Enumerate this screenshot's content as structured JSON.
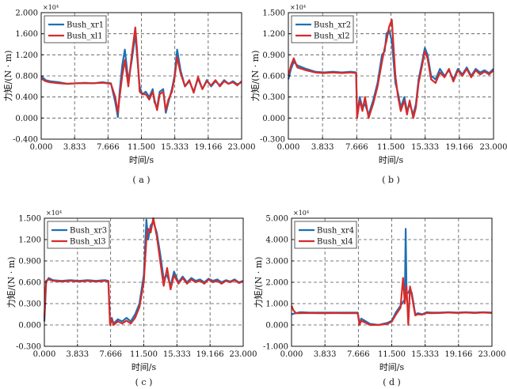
{
  "chart_data": [
    {
      "type": "line",
      "caption": "( a )",
      "xlabel": "时间/s",
      "ylabel": "力矩/(N · m)",
      "y_scale_label": "×10⁴",
      "xlim": [
        0,
        23
      ],
      "ylim": [
        -0.4,
        2.0
      ],
      "x_ticks": [
        "0.000",
        "3.833",
        "7.666",
        "11.500",
        "15.333",
        "19.166",
        "23.000"
      ],
      "y_ticks": [
        "-0.400",
        "0.000",
        "0.400",
        "0.800",
        "1.200",
        "1.600",
        "2.000"
      ],
      "legend_position": "top-left",
      "series": [
        {
          "name": "Bush_xr1",
          "color": "#1f6fb4",
          "x": [
            0,
            0.5,
            1,
            2,
            3,
            4,
            5,
            6,
            7,
            7.5,
            8,
            8.5,
            8.8,
            9,
            9.3,
            9.6,
            10,
            10.4,
            10.8,
            11,
            11.3,
            11.6,
            12,
            12.4,
            12.8,
            13,
            13.3,
            13.6,
            14,
            14.3,
            14.6,
            15,
            15.3,
            15.6,
            16,
            16.5,
            17,
            17.5,
            18,
            18.5,
            19,
            19.5,
            20,
            20.5,
            21,
            21.5,
            22,
            22.5,
            23
          ],
          "y": [
            0.8,
            0.72,
            0.7,
            0.68,
            0.65,
            0.66,
            0.67,
            0.66,
            0.68,
            0.67,
            0.66,
            0.3,
            0.02,
            0.5,
            1.0,
            1.3,
            0.7,
            1.1,
            1.6,
            1.2,
            0.6,
            0.45,
            0.5,
            0.4,
            0.55,
            0.3,
            0.2,
            0.5,
            0.55,
            0.1,
            0.3,
            0.55,
            0.8,
            1.3,
            0.9,
            0.6,
            0.7,
            0.5,
            0.75,
            0.55,
            0.72,
            0.6,
            0.7,
            0.62,
            0.72,
            0.65,
            0.7,
            0.64,
            0.68
          ]
        },
        {
          "name": "Bush_xl1",
          "color": "#d62b2b",
          "x": [
            0,
            0.5,
            1,
            2,
            3,
            4,
            5,
            6,
            7,
            7.5,
            8,
            8.5,
            8.8,
            9,
            9.3,
            9.6,
            10,
            10.4,
            10.8,
            11,
            11.3,
            11.6,
            12,
            12.4,
            12.8,
            13,
            13.3,
            13.6,
            14,
            14.3,
            14.6,
            15,
            15.3,
            15.6,
            16,
            16.5,
            17,
            17.5,
            18,
            18.5,
            19,
            19.5,
            20,
            20.5,
            21,
            21.5,
            22,
            22.5,
            23
          ],
          "y": [
            0.75,
            0.7,
            0.68,
            0.66,
            0.65,
            0.66,
            0.66,
            0.66,
            0.67,
            0.66,
            0.65,
            0.4,
            0.1,
            0.4,
            0.8,
            1.1,
            0.6,
            1.2,
            1.72,
            1.3,
            0.5,
            0.45,
            0.45,
            0.35,
            0.5,
            0.35,
            0.15,
            0.45,
            0.5,
            0.15,
            0.35,
            0.5,
            0.75,
            1.15,
            0.85,
            0.6,
            0.72,
            0.48,
            0.78,
            0.55,
            0.7,
            0.62,
            0.72,
            0.6,
            0.7,
            0.65,
            0.68,
            0.62,
            0.7
          ]
        }
      ]
    },
    {
      "type": "line",
      "caption": "( b )",
      "xlabel": "时间/s",
      "ylabel": "力矩/(N · m)",
      "y_scale_label": "×10⁴",
      "xlim": [
        0,
        23
      ],
      "ylim": [
        -0.3,
        1.5
      ],
      "x_ticks": [
        "0.000",
        "3.833",
        "7.666",
        "11.500",
        "15.333",
        "19.166",
        "23.000"
      ],
      "y_ticks": [
        "-0.300",
        "0.000",
        "0.300",
        "0.600",
        "0.900",
        "1.200",
        "1.500"
      ],
      "legend_position": "top-left",
      "series": [
        {
          "name": "Bush_xr2",
          "color": "#1f6fb4",
          "x": [
            0,
            0.3,
            0.6,
            1,
            2,
            3,
            4,
            5,
            6,
            7,
            7.6,
            7.7,
            8,
            8.3,
            8.6,
            9,
            9.5,
            10,
            10.5,
            10.8,
            11,
            11.3,
            11.6,
            12,
            12.3,
            12.6,
            13,
            13.3,
            13.6,
            14,
            14.3,
            14.6,
            15,
            15.3,
            15.6,
            16,
            16.5,
            17,
            17.5,
            18,
            18.5,
            19,
            19.5,
            20,
            20.5,
            21,
            21.5,
            22,
            22.5,
            23
          ],
          "y": [
            0.55,
            0.7,
            0.8,
            0.75,
            0.7,
            0.66,
            0.65,
            0.66,
            0.65,
            0.66,
            0.65,
            0.05,
            0.3,
            0.15,
            0.2,
            0.05,
            0.25,
            0.5,
            0.9,
            0.95,
            1.2,
            1.25,
            1.1,
            0.5,
            0.35,
            0.15,
            0.3,
            0.1,
            0.2,
            0.05,
            0.2,
            0.55,
            0.8,
            1.0,
            0.9,
            0.6,
            0.55,
            0.7,
            0.6,
            0.68,
            0.55,
            0.7,
            0.62,
            0.72,
            0.6,
            0.7,
            0.65,
            0.68,
            0.64,
            0.7
          ]
        },
        {
          "name": "Bush_xl2",
          "color": "#d62b2b",
          "x": [
            0,
            0.3,
            0.6,
            1,
            2,
            3,
            4,
            5,
            6,
            7,
            7.6,
            7.7,
            8,
            8.3,
            8.6,
            9,
            9.5,
            10,
            10.5,
            10.8,
            11,
            11.3,
            11.6,
            12,
            12.3,
            12.6,
            13,
            13.3,
            13.6,
            14,
            14.3,
            14.6,
            15,
            15.3,
            15.6,
            16,
            16.5,
            17,
            17.5,
            18,
            18.5,
            19,
            19.5,
            20,
            20.5,
            21,
            21.5,
            22,
            22.5,
            23
          ],
          "y": [
            0.6,
            0.75,
            0.85,
            0.72,
            0.68,
            0.65,
            0.64,
            0.65,
            0.64,
            0.65,
            0.64,
            0.0,
            0.25,
            0.1,
            0.3,
            0.0,
            0.2,
            0.45,
            0.8,
            1.0,
            1.1,
            1.3,
            1.4,
            0.6,
            0.3,
            0.1,
            0.25,
            0.05,
            0.25,
            0.0,
            0.15,
            0.5,
            0.75,
            0.95,
            0.85,
            0.55,
            0.5,
            0.65,
            0.58,
            0.7,
            0.52,
            0.68,
            0.6,
            0.7,
            0.58,
            0.68,
            0.62,
            0.66,
            0.62,
            0.68
          ]
        }
      ]
    },
    {
      "type": "line",
      "caption": "( c )",
      "xlabel": "时间/s",
      "ylabel": "力矩/(N · m)",
      "y_scale_label": "×10⁴",
      "xlim": [
        0,
        23
      ],
      "ylim": [
        -0.3,
        1.5
      ],
      "x_ticks": [
        "0.000",
        "3.833",
        "7.666",
        "11.500",
        "15.333",
        "19.166",
        "23.000"
      ],
      "y_ticks": [
        "-0.300",
        "0.000",
        "0.300",
        "0.600",
        "0.900",
        "1.200",
        "1.500"
      ],
      "legend_position": "top-left",
      "series": [
        {
          "name": "Bush_xr3",
          "color": "#1f6fb4",
          "x": [
            0,
            0.2,
            0.5,
            1,
            2,
            3,
            4,
            5,
            6,
            7,
            7.4,
            7.6,
            7.8,
            8,
            8.5,
            9,
            9.5,
            10,
            10.5,
            11,
            11.5,
            11.8,
            12,
            12.3,
            12.6,
            13,
            13.4,
            13.8,
            14.2,
            14.6,
            15,
            15.5,
            16,
            16.5,
            17,
            17.5,
            18,
            18.5,
            19,
            19.5,
            20,
            20.5,
            21,
            21.5,
            22,
            22.5,
            23
          ],
          "y": [
            0.05,
            0.6,
            0.66,
            0.63,
            0.62,
            0.63,
            0.62,
            0.63,
            0.62,
            0.63,
            0.62,
            0.05,
            0.1,
            0.02,
            0.08,
            0.05,
            0.1,
            0.05,
            0.15,
            0.3,
            0.7,
            1.48,
            1.2,
            1.4,
            1.45,
            1.3,
            1.0,
            0.65,
            0.7,
            0.55,
            0.75,
            0.6,
            0.68,
            0.6,
            0.66,
            0.62,
            0.64,
            0.6,
            0.65,
            0.62,
            0.64,
            0.6,
            0.63,
            0.61,
            0.64,
            0.6,
            0.62
          ]
        },
        {
          "name": "Bush_xl3",
          "color": "#d62b2b",
          "x": [
            0,
            0.2,
            0.5,
            1,
            2,
            3,
            4,
            5,
            6,
            7,
            7.4,
            7.6,
            7.8,
            8,
            8.5,
            9,
            9.5,
            10,
            10.5,
            11,
            11.5,
            11.8,
            12,
            12.3,
            12.6,
            13,
            13.4,
            13.8,
            14.2,
            14.6,
            15,
            15.5,
            16,
            16.5,
            17,
            17.5,
            18,
            18.5,
            19,
            19.5,
            20,
            20.5,
            21,
            21.5,
            22,
            22.5,
            23
          ],
          "y": [
            0.1,
            0.62,
            0.64,
            0.62,
            0.61,
            0.62,
            0.61,
            0.62,
            0.61,
            0.62,
            0.61,
            0.0,
            0.08,
            0.0,
            0.05,
            0.02,
            0.06,
            0.02,
            0.1,
            0.25,
            0.6,
            1.2,
            1.35,
            1.3,
            1.5,
            1.25,
            0.9,
            0.55,
            0.8,
            0.5,
            0.7,
            0.58,
            0.66,
            0.58,
            0.64,
            0.6,
            0.62,
            0.58,
            0.64,
            0.6,
            0.62,
            0.58,
            0.62,
            0.6,
            0.63,
            0.59,
            0.61
          ]
        }
      ]
    },
    {
      "type": "line",
      "caption": "( d )",
      "xlabel": "时间/s",
      "ylabel": "力矩/(N · m)",
      "y_scale_label": "×10⁴",
      "xlim": [
        0,
        23
      ],
      "ylim": [
        -1.0,
        5.0
      ],
      "x_ticks": [
        "0.000",
        "3.833",
        "7.666",
        "11.500",
        "15.333",
        "19.166",
        "23.000"
      ],
      "y_ticks": [
        "-1.000",
        "0.000",
        "1.000",
        "2.000",
        "3.000",
        "4.000",
        "5.000"
      ],
      "legend_position": "top-left",
      "series": [
        {
          "name": "Bush_xr4",
          "color": "#1f6fb4",
          "x": [
            0,
            0.5,
            1,
            2,
            3,
            4,
            5,
            6,
            7,
            7.6,
            7.8,
            8,
            9,
            10,
            11,
            11.5,
            12,
            12.5,
            13,
            13.1,
            13.2,
            13.4,
            13.6,
            13.8,
            14,
            14.2,
            14.5,
            15,
            15.5,
            16,
            17,
            18,
            19,
            20,
            21,
            22,
            23
          ],
          "y": [
            0.5,
            0.55,
            0.6,
            0.58,
            0.58,
            0.58,
            0.58,
            0.58,
            0.58,
            0.58,
            0.05,
            0.3,
            0.05,
            0.0,
            0.1,
            0.2,
            0.6,
            0.9,
            1.2,
            4.5,
            1.5,
            1.5,
            1.7,
            1.5,
            1.0,
            0.5,
            0.55,
            0.5,
            0.6,
            0.58,
            0.58,
            0.6,
            0.58,
            0.6,
            0.58,
            0.6,
            0.58
          ]
        },
        {
          "name": "Bush_xl4",
          "color": "#d62b2b",
          "x": [
            0,
            0.2,
            0.5,
            1,
            2,
            3,
            4,
            5,
            6,
            7,
            7.6,
            7.8,
            8,
            9,
            10,
            11,
            11.5,
            12,
            12.5,
            12.8,
            13,
            13.2,
            13.4,
            13.6,
            13.8,
            14,
            14.2,
            14.5,
            15,
            15.5,
            16,
            17,
            18,
            19,
            20,
            21,
            22,
            23
          ],
          "y": [
            0.9,
            0.7,
            0.55,
            0.55,
            0.56,
            0.55,
            0.55,
            0.56,
            0.55,
            0.55,
            0.55,
            0.0,
            0.2,
            0.0,
            0.0,
            0.05,
            0.15,
            0.5,
            0.8,
            2.2,
            1.0,
            1.8,
            0.0,
            1.8,
            1.4,
            0.9,
            0.45,
            0.5,
            0.48,
            0.56,
            0.55,
            0.56,
            0.58,
            0.56,
            0.58,
            0.56,
            0.58,
            0.56
          ]
        }
      ]
    }
  ]
}
